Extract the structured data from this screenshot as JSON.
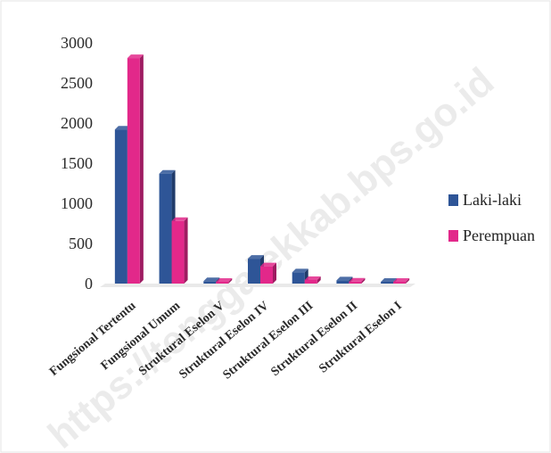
{
  "chart_data": {
    "type": "bar",
    "categories": [
      "Fungsional Tertentu",
      "Fungsional Umum",
      "Struktural Eselon V",
      "Struktural Eselon IV",
      "Struktural Eselon III",
      "Struktural Eselon II",
      "Struktural Eselon I"
    ],
    "series": [
      {
        "name": "Laki-laki",
        "values": [
          1920,
          1370,
          30,
          310,
          140,
          40,
          15
        ],
        "color": "#2e5597"
      },
      {
        "name": "Perempuan",
        "values": [
          2810,
          780,
          20,
          215,
          45,
          25,
          10
        ],
        "color": "#e2288a"
      }
    ],
    "yticks": [
      0,
      500,
      1000,
      1500,
      2000,
      2500,
      3000
    ],
    "ylim": [
      0,
      3000
    ],
    "legend_position": "right",
    "grid": false
  },
  "watermark": "https://tenggalekkab.bps.go.id"
}
